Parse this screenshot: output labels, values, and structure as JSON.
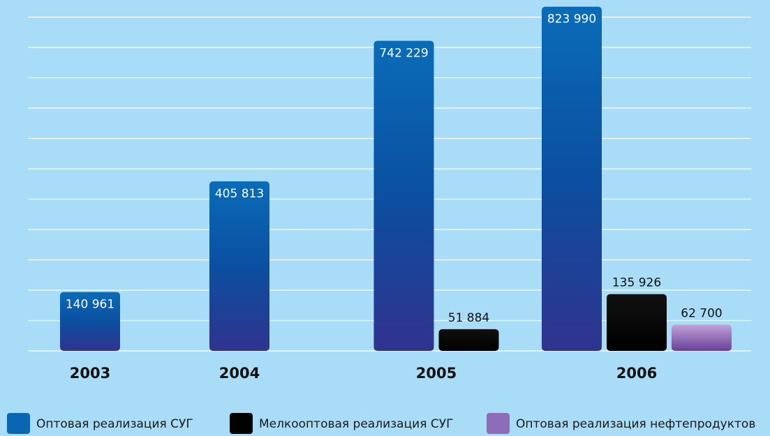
{
  "chart_data": {
    "type": "bar",
    "categories": [
      "2003",
      "2004",
      "2005",
      "2006"
    ],
    "series": [
      {
        "name": "Оптовая реализация СУГ",
        "color": "#0a66b2",
        "values": [
          140961,
          405813,
          742229,
          823990
        ],
        "value_labels": [
          "140 961",
          "405 813",
          "742 229",
          "823 990"
        ]
      },
      {
        "name": "Мелкооптовая реализация СУГ",
        "color": "#000000",
        "values": [
          null,
          null,
          51884,
          135926
        ],
        "value_labels": [
          null,
          null,
          "51 884",
          "135 926"
        ]
      },
      {
        "name": "Оптовая реализация нефтепродуктов",
        "color": "#8e6cb8",
        "values": [
          null,
          null,
          null,
          62700
        ],
        "value_labels": [
          null,
          null,
          null,
          "62 700"
        ]
      }
    ],
    "ylim": [
      0,
      840000
    ],
    "grid": true,
    "legend": "bottom"
  }
}
